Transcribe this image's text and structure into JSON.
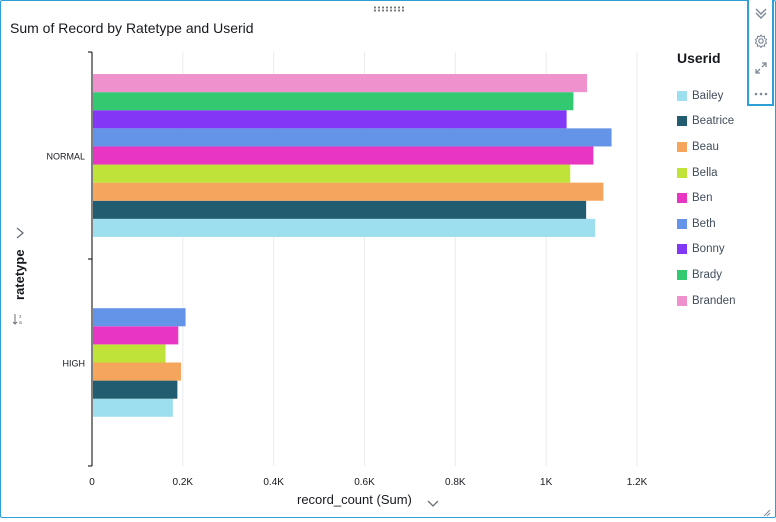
{
  "visual": {
    "title": "Sum of Record by Ratetype and Userid",
    "y_axis_label": "ratetype",
    "x_axis_label": "record_count (Sum)",
    "legend_title": "Userid"
  },
  "toolbar": {
    "icons": [
      "collapse-icon",
      "settings-icon",
      "expand-icon",
      "more-icon"
    ]
  },
  "colors": {
    "accent": "#2f9fd8",
    "Bailey": "#9edfef",
    "Beatrice": "#215c71",
    "Beau": "#f5a55c",
    "Bella": "#bfe339",
    "Ben": "#e835c2",
    "Beth": "#6494e7",
    "Bonny": "#8236f6",
    "Brady": "#32c971",
    "Branden": "#ee91cd"
  },
  "chart_data": {
    "type": "bar",
    "orientation": "horizontal",
    "title": "Sum of Record by Ratetype and Userid",
    "xlabel": "record_count (Sum)",
    "ylabel": "ratetype",
    "categories": [
      "NORMAL",
      "HIGH"
    ],
    "x_ticks": [
      "0",
      "0.2K",
      "0.4K",
      "0.6K",
      "0.8K",
      "1K",
      "1.2K"
    ],
    "xlim": [
      0,
      1200
    ],
    "grid": true,
    "legend_position": "right",
    "series": [
      {
        "name": "Bailey",
        "color": "#9edfef",
        "values": [
          1108,
          178
        ]
      },
      {
        "name": "Beatrice",
        "color": "#215c71",
        "values": [
          1088,
          188
        ]
      },
      {
        "name": "Beau",
        "color": "#f5a55c",
        "values": [
          1126,
          196
        ]
      },
      {
        "name": "Bella",
        "color": "#bfe339",
        "values": [
          1053,
          162
        ]
      },
      {
        "name": "Ben",
        "color": "#e835c2",
        "values": [
          1104,
          190
        ]
      },
      {
        "name": "Beth",
        "color": "#6494e7",
        "values": [
          1144,
          206
        ]
      },
      {
        "name": "Bonny",
        "color": "#8236f6",
        "values": [
          1045,
          null
        ]
      },
      {
        "name": "Brady",
        "color": "#32c971",
        "values": [
          1060,
          null
        ]
      },
      {
        "name": "Branden",
        "color": "#ee91cd",
        "values": [
          1090,
          null
        ]
      }
    ]
  }
}
